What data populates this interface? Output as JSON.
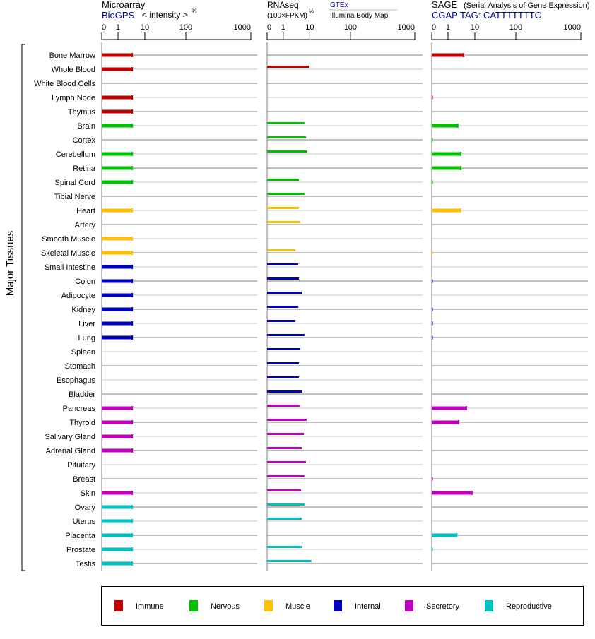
{
  "chart_data": {
    "type": "bar",
    "group_label": "Major Tissues",
    "categories": [
      "Bone Marrow",
      "Whole Blood",
      "White Blood Cells",
      "Lymph Node",
      "Thymus",
      "Brain",
      "Cortex",
      "Cerebellum",
      "Retina",
      "Spinal Cord",
      "Tibial Nerve",
      "Heart",
      "Artery",
      "Smooth Muscle",
      "Skeletal Muscle",
      "Small Intestine",
      "Colon",
      "Adipocyte",
      "Kidney",
      "Liver",
      "Lung",
      "Spleen",
      "Stomach",
      "Esophagus",
      "Bladder",
      "Pancreas",
      "Thyroid",
      "Salivary Gland",
      "Adrenal Gland",
      "Pituitary",
      "Breast",
      "Skin",
      "Ovary",
      "Uterus",
      "Placenta",
      "Prostate",
      "Testis"
    ],
    "category_groups": [
      "Immune",
      "Immune",
      "Immune",
      "Immune",
      "Immune",
      "Nervous",
      "Nervous",
      "Nervous",
      "Nervous",
      "Nervous",
      "Nervous",
      "Muscle",
      "Muscle",
      "Muscle",
      "Muscle",
      "Internal",
      "Internal",
      "Internal",
      "Internal",
      "Internal",
      "Internal",
      "Internal",
      "Internal",
      "Internal",
      "Internal",
      "Secretory",
      "Secretory",
      "Secretory",
      "Secretory",
      "Secretory",
      "Secretory",
      "Secretory",
      "Reproductive",
      "Reproductive",
      "Reproductive",
      "Reproductive",
      "Reproductive"
    ],
    "x_ticks": [
      0,
      1,
      10,
      100,
      1000
    ],
    "xlim": [
      0,
      1000
    ],
    "panels": [
      {
        "name": "Microarray",
        "source": "BioGPS",
        "unit": "< intensity >",
        "unit_exp": "⅔",
        "values": [
          3.4,
          3.4,
          null,
          3.4,
          3.4,
          3.4,
          null,
          3.4,
          3.4,
          3.4,
          null,
          3.4,
          null,
          3.4,
          3.4,
          3.4,
          3.4,
          3.4,
          3.4,
          3.4,
          3.4,
          null,
          null,
          null,
          null,
          3.4,
          3.4,
          3.4,
          3.4,
          null,
          null,
          3.4,
          3.4,
          3.4,
          3.4,
          3.4,
          3.4
        ]
      },
      {
        "name": "RNAseq",
        "unit": "(100×FPKM)",
        "unit_exp": "½",
        "source": "GTEx",
        "source2": "Illumina Body Map",
        "values": [
          null,
          9.2,
          null,
          null,
          null,
          6.3,
          7.2,
          8.1,
          null,
          3.9,
          6.3,
          3.9,
          4.4,
          null,
          2.9,
          3.7,
          3.9,
          5.0,
          3.7,
          2.9,
          6.3,
          4.4,
          3.9,
          3.9,
          5.0,
          4.1,
          7.6,
          6.0,
          5.0,
          7.2,
          6.3,
          4.7,
          6.3,
          5.0,
          null,
          5.3,
          11
        ]
      },
      {
        "name": "SAGE",
        "subtitle": "(Serial Analysis of Gene Expression)",
        "source": "CGAP TAG: CATTTTTTTC",
        "values": [
          3.8,
          null,
          null,
          0.05,
          null,
          2.3,
          0.05,
          3.0,
          3.0,
          0.05,
          null,
          2.9,
          null,
          null,
          0.05,
          null,
          0.05,
          null,
          0.05,
          0.05,
          0.05,
          null,
          null,
          null,
          null,
          4.8,
          2.5,
          null,
          null,
          null,
          0.05,
          7.8,
          null,
          null,
          2.1,
          0.05,
          null
        ]
      }
    ],
    "legend": [
      {
        "label": "Immune",
        "color": "#c00000"
      },
      {
        "label": "Nervous",
        "color": "#00c000"
      },
      {
        "label": "Muscle",
        "color": "#ffc000"
      },
      {
        "label": "Internal",
        "color": "#0000c0"
      },
      {
        "label": "Secretory",
        "color": "#c000c0"
      },
      {
        "label": "Reproductive",
        "color": "#00c0c0"
      }
    ],
    "legend_position": "bottom",
    "grid": true
  }
}
